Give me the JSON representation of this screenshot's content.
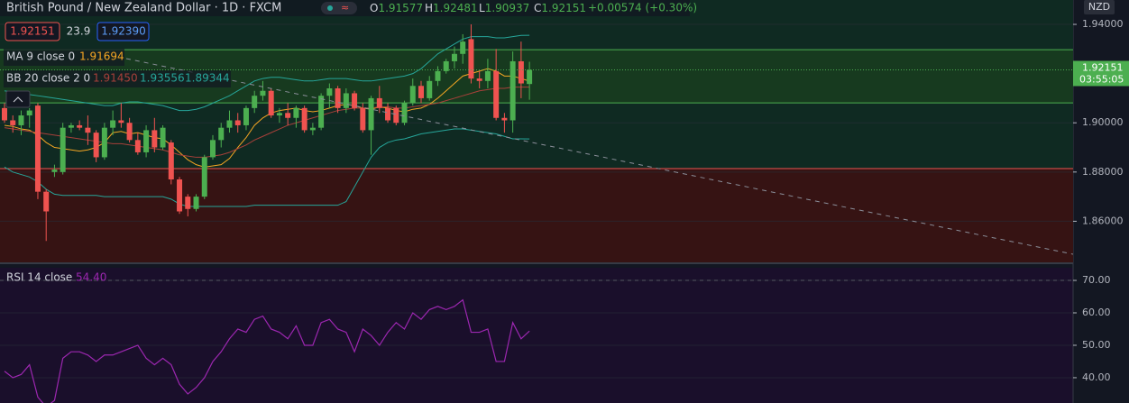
{
  "chart_data": [
    {
      "type": "candlestick",
      "title": "British Pound / New Zealand Dollar · 1D · FXCM",
      "ohlc_prefixes": [
        "O",
        "H",
        "L",
        "C"
      ],
      "change": "+0.00574 (+0.30%)",
      "spread": "23.9",
      "ask": 1.9239,
      "ask_label": "1.92390",
      "currency": "NZD",
      "countdown": "03:55:05",
      "up_color": "#4caf50",
      "down_color": "#ef5350",
      "categories": [
        null,
        null,
        null,
        null,
        null,
        null,
        null,
        null,
        null,
        null,
        null,
        null,
        null,
        null,
        null,
        null,
        null,
        null,
        null,
        null,
        null,
        null,
        null,
        null,
        null,
        null,
        null,
        null,
        null,
        null,
        null,
        null,
        null,
        null,
        null,
        null,
        null,
        null,
        null,
        null,
        null,
        null,
        null,
        null,
        null,
        null,
        null,
        null,
        null,
        null,
        null,
        null,
        null,
        null,
        null,
        null,
        null,
        null,
        null,
        null,
        null,
        null,
        null,
        null
      ],
      "open": [
        1.906,
        1.901,
        1.899,
        1.903,
        1.907,
        1.872,
        1.88,
        1.88,
        1.898,
        1.899,
        1.898,
        1.896,
        1.886,
        1.898,
        1.901,
        1.9,
        1.893,
        1.888,
        1.897,
        1.89,
        1.892,
        1.877,
        1.87,
        1.865,
        1.87,
        1.886,
        1.893,
        1.898,
        1.901,
        1.899,
        1.906,
        1.911,
        1.913,
        1.903,
        1.904,
        1.902,
        1.906,
        1.897,
        1.898,
        1.911,
        1.914,
        1.906,
        1.912,
        1.906,
        1.897,
        1.91,
        1.906,
        1.906,
        1.9,
        1.908,
        1.915,
        1.91,
        1.917,
        1.921,
        1.925,
        1.928,
        1.934,
        1.918,
        1.917,
        1.921,
        1.902,
        1.901,
        1.925,
        1.91577
      ],
      "high": [
        1.908,
        1.903,
        1.905,
        1.906,
        1.908,
        1.873,
        1.883,
        1.9,
        1.9,
        1.901,
        1.903,
        1.897,
        1.9,
        1.905,
        1.908,
        1.902,
        1.896,
        1.899,
        1.902,
        1.899,
        1.893,
        1.878,
        1.871,
        1.871,
        1.887,
        1.895,
        1.9,
        1.905,
        1.904,
        1.907,
        1.913,
        1.917,
        1.914,
        1.906,
        1.908,
        1.907,
        1.907,
        1.9,
        1.912,
        1.916,
        1.915,
        1.914,
        1.913,
        1.908,
        1.911,
        1.915,
        1.908,
        1.907,
        1.909,
        1.918,
        1.917,
        1.919,
        1.923,
        1.926,
        1.931,
        1.936,
        1.94,
        1.921,
        1.926,
        1.93,
        1.904,
        1.929,
        1.933,
        1.92481
      ],
      "low": [
        1.9,
        1.896,
        1.895,
        1.898,
        1.869,
        1.852,
        1.878,
        1.879,
        1.896,
        1.897,
        1.891,
        1.884,
        1.885,
        1.895,
        1.898,
        1.892,
        1.887,
        1.886,
        1.888,
        1.889,
        1.875,
        1.863,
        1.862,
        1.864,
        1.869,
        1.885,
        1.89,
        1.896,
        1.896,
        1.897,
        1.904,
        1.909,
        1.902,
        1.9,
        1.899,
        1.898,
        1.896,
        1.895,
        1.897,
        1.906,
        1.904,
        1.904,
        1.905,
        1.896,
        1.887,
        1.904,
        1.9,
        1.899,
        1.899,
        1.907,
        1.908,
        1.909,
        1.915,
        1.92,
        1.922,
        1.924,
        1.916,
        1.914,
        1.914,
        1.901,
        1.896,
        1.896,
        1.91,
        1.90937
      ],
      "close": [
        1.901,
        1.899,
        1.903,
        1.905,
        1.872,
        1.864,
        1.881,
        1.898,
        1.899,
        1.898,
        1.896,
        1.886,
        1.898,
        1.901,
        1.9,
        1.893,
        1.888,
        1.897,
        1.89,
        1.898,
        1.877,
        1.864,
        1.865,
        1.87,
        1.886,
        1.893,
        1.898,
        1.901,
        1.899,
        1.906,
        1.911,
        1.913,
        1.903,
        1.904,
        1.902,
        1.906,
        1.897,
        1.898,
        1.911,
        1.914,
        1.906,
        1.912,
        1.906,
        1.897,
        1.91,
        1.906,
        1.901,
        1.9,
        1.908,
        1.915,
        1.91,
        1.917,
        1.921,
        1.925,
        1.928,
        1.933,
        1.918,
        1.917,
        1.921,
        1.902,
        1.901,
        1.925,
        1.916,
        1.92151
      ],
      "indicators": [
        {
          "name": "MA 9 close 0",
          "lines": [
            {
              "color": "#f5a623",
              "values": [
                1.899,
                1.8985,
                1.8975,
                1.897,
                1.895,
                1.892,
                1.89,
                1.8895,
                1.889,
                1.8885,
                1.889,
                1.89,
                1.892,
                1.896,
                1.8965,
                1.8955,
                1.896,
                1.895,
                1.894,
                1.8935,
                1.891,
                1.888,
                1.885,
                1.883,
                1.882,
                1.8825,
                1.883,
                1.8855,
                1.89,
                1.894,
                1.899,
                1.902,
                1.904,
                1.905,
                1.9055,
                1.906,
                1.905,
                1.9045,
                1.905,
                1.906,
                1.907,
                1.9075,
                1.907,
                1.906,
                1.9055,
                1.9065,
                1.906,
                1.905,
                1.9045,
                1.9055,
                1.906,
                1.9075,
                1.91,
                1.913,
                1.916,
                1.919,
                1.92,
                1.921,
                1.922,
                1.921,
                1.919,
                1.919,
                1.918,
                1.91694
              ]
            }
          ]
        },
        {
          "name": "BB 20 close 2 0",
          "lines": [
            {
              "color": "#a8403a",
              "value_label": "1.91450",
              "values": [
                1.898,
                1.8975,
                1.897,
                1.8965,
                1.896,
                1.8955,
                1.895,
                1.8945,
                1.894,
                1.8935,
                1.893,
                1.8925,
                1.892,
                1.8915,
                1.8915,
                1.891,
                1.8905,
                1.89,
                1.8895,
                1.889,
                1.888,
                1.887,
                1.8865,
                1.886,
                1.886,
                1.8865,
                1.887,
                1.888,
                1.8895,
                1.891,
                1.893,
                1.8945,
                1.896,
                1.8975,
                1.899,
                1.9,
                1.901,
                1.902,
                1.903,
                1.904,
                1.905,
                1.9055,
                1.906,
                1.906,
                1.906,
                1.9065,
                1.9065,
                1.906,
                1.906,
                1.9065,
                1.907,
                1.9075,
                1.908,
                1.909,
                1.91,
                1.911,
                1.912,
                1.913,
                1.9135,
                1.914,
                1.914,
                1.9145,
                1.9145,
                1.9145
              ]
            },
            {
              "color": "#26a69a",
              "values": [
                1.913,
                1.9125,
                1.912,
                1.9115,
                1.911,
                1.9105,
                1.91,
                1.9095,
                1.909,
                1.9085,
                1.908,
                1.9075,
                1.907,
                1.907,
                1.908,
                1.9085,
                1.9085,
                1.908,
                1.9075,
                1.907,
                1.906,
                1.905,
                1.905,
                1.9055,
                1.9065,
                1.908,
                1.9095,
                1.911,
                1.913,
                1.915,
                1.917,
                1.918,
                1.9185,
                1.9185,
                1.918,
                1.9175,
                1.917,
                1.917,
                1.9175,
                1.918,
                1.918,
                1.918,
                1.9175,
                1.917,
                1.917,
                1.9175,
                1.918,
                1.9185,
                1.919,
                1.92,
                1.922,
                1.925,
                1.928,
                1.93,
                1.932,
                1.934,
                1.935,
                1.935,
                1.935,
                1.9345,
                1.9345,
                1.935,
                1.9355,
                1.93556
              ]
            },
            {
              "color": "#26a69a",
              "values": [
                1.882,
                1.88,
                1.879,
                1.878,
                1.876,
                1.873,
                1.871,
                1.8705,
                1.8705,
                1.8705,
                1.8705,
                1.8705,
                1.87,
                1.87,
                1.87,
                1.87,
                1.87,
                1.87,
                1.87,
                1.87,
                1.869,
                1.867,
                1.866,
                1.866,
                1.866,
                1.866,
                1.866,
                1.866,
                1.866,
                1.866,
                1.8665,
                1.8665,
                1.8665,
                1.8665,
                1.8665,
                1.8665,
                1.8665,
                1.8665,
                1.8665,
                1.8665,
                1.8665,
                1.868,
                1.874,
                1.88,
                1.886,
                1.89,
                1.892,
                1.893,
                1.8935,
                1.8945,
                1.8955,
                1.896,
                1.8965,
                1.897,
                1.8975,
                1.8975,
                1.897,
                1.8965,
                1.896,
                1.8955,
                1.8945,
                1.8935,
                1.8935,
                1.89344
              ]
            }
          ]
        }
      ],
      "levels": [
        {
          "value": 1.9297,
          "color": "#4caf50"
        },
        {
          "value": 1.9081,
          "color": "#4caf50"
        },
        {
          "value": 1.8814,
          "color": "#ef5350"
        }
      ],
      "ylim": [
        1.8433,
        1.9499
      ],
      "yticks": [
        {
          "value": 1.94,
          "label": "1.94000"
        },
        {
          "value": 1.9,
          "label": "1.90000"
        },
        {
          "value": 1.88,
          "label": "1.88000"
        },
        {
          "value": 1.86,
          "label": "1.86000"
        }
      ],
      "grid": true
    },
    {
      "type": "line",
      "name": "RSI 14 close",
      "color": "#9c27b0",
      "value_label": "54.40",
      "values": [
        42,
        40,
        41,
        44,
        34,
        31,
        33,
        46,
        48,
        48,
        47,
        45,
        47,
        47,
        48,
        49,
        50,
        46,
        44,
        46,
        44,
        38,
        35,
        37,
        40,
        45,
        48,
        52,
        55,
        54,
        58,
        59,
        55,
        54,
        52,
        56,
        50,
        50,
        57,
        58,
        55,
        54,
        48,
        55,
        53,
        50,
        54,
        57,
        55,
        60,
        58,
        61,
        62,
        61,
        62,
        64,
        54,
        54,
        55,
        45,
        45,
        57,
        52,
        54.4
      ],
      "levels": [
        70
      ],
      "ylim": [
        32.2,
        73.9
      ],
      "yticks": [
        {
          "value": 70,
          "label": "70.00"
        },
        {
          "value": 60,
          "label": "60.00"
        },
        {
          "value": 50,
          "label": "50.00"
        },
        {
          "value": 40,
          "label": "40.00"
        }
      ],
      "grid": true
    }
  ]
}
